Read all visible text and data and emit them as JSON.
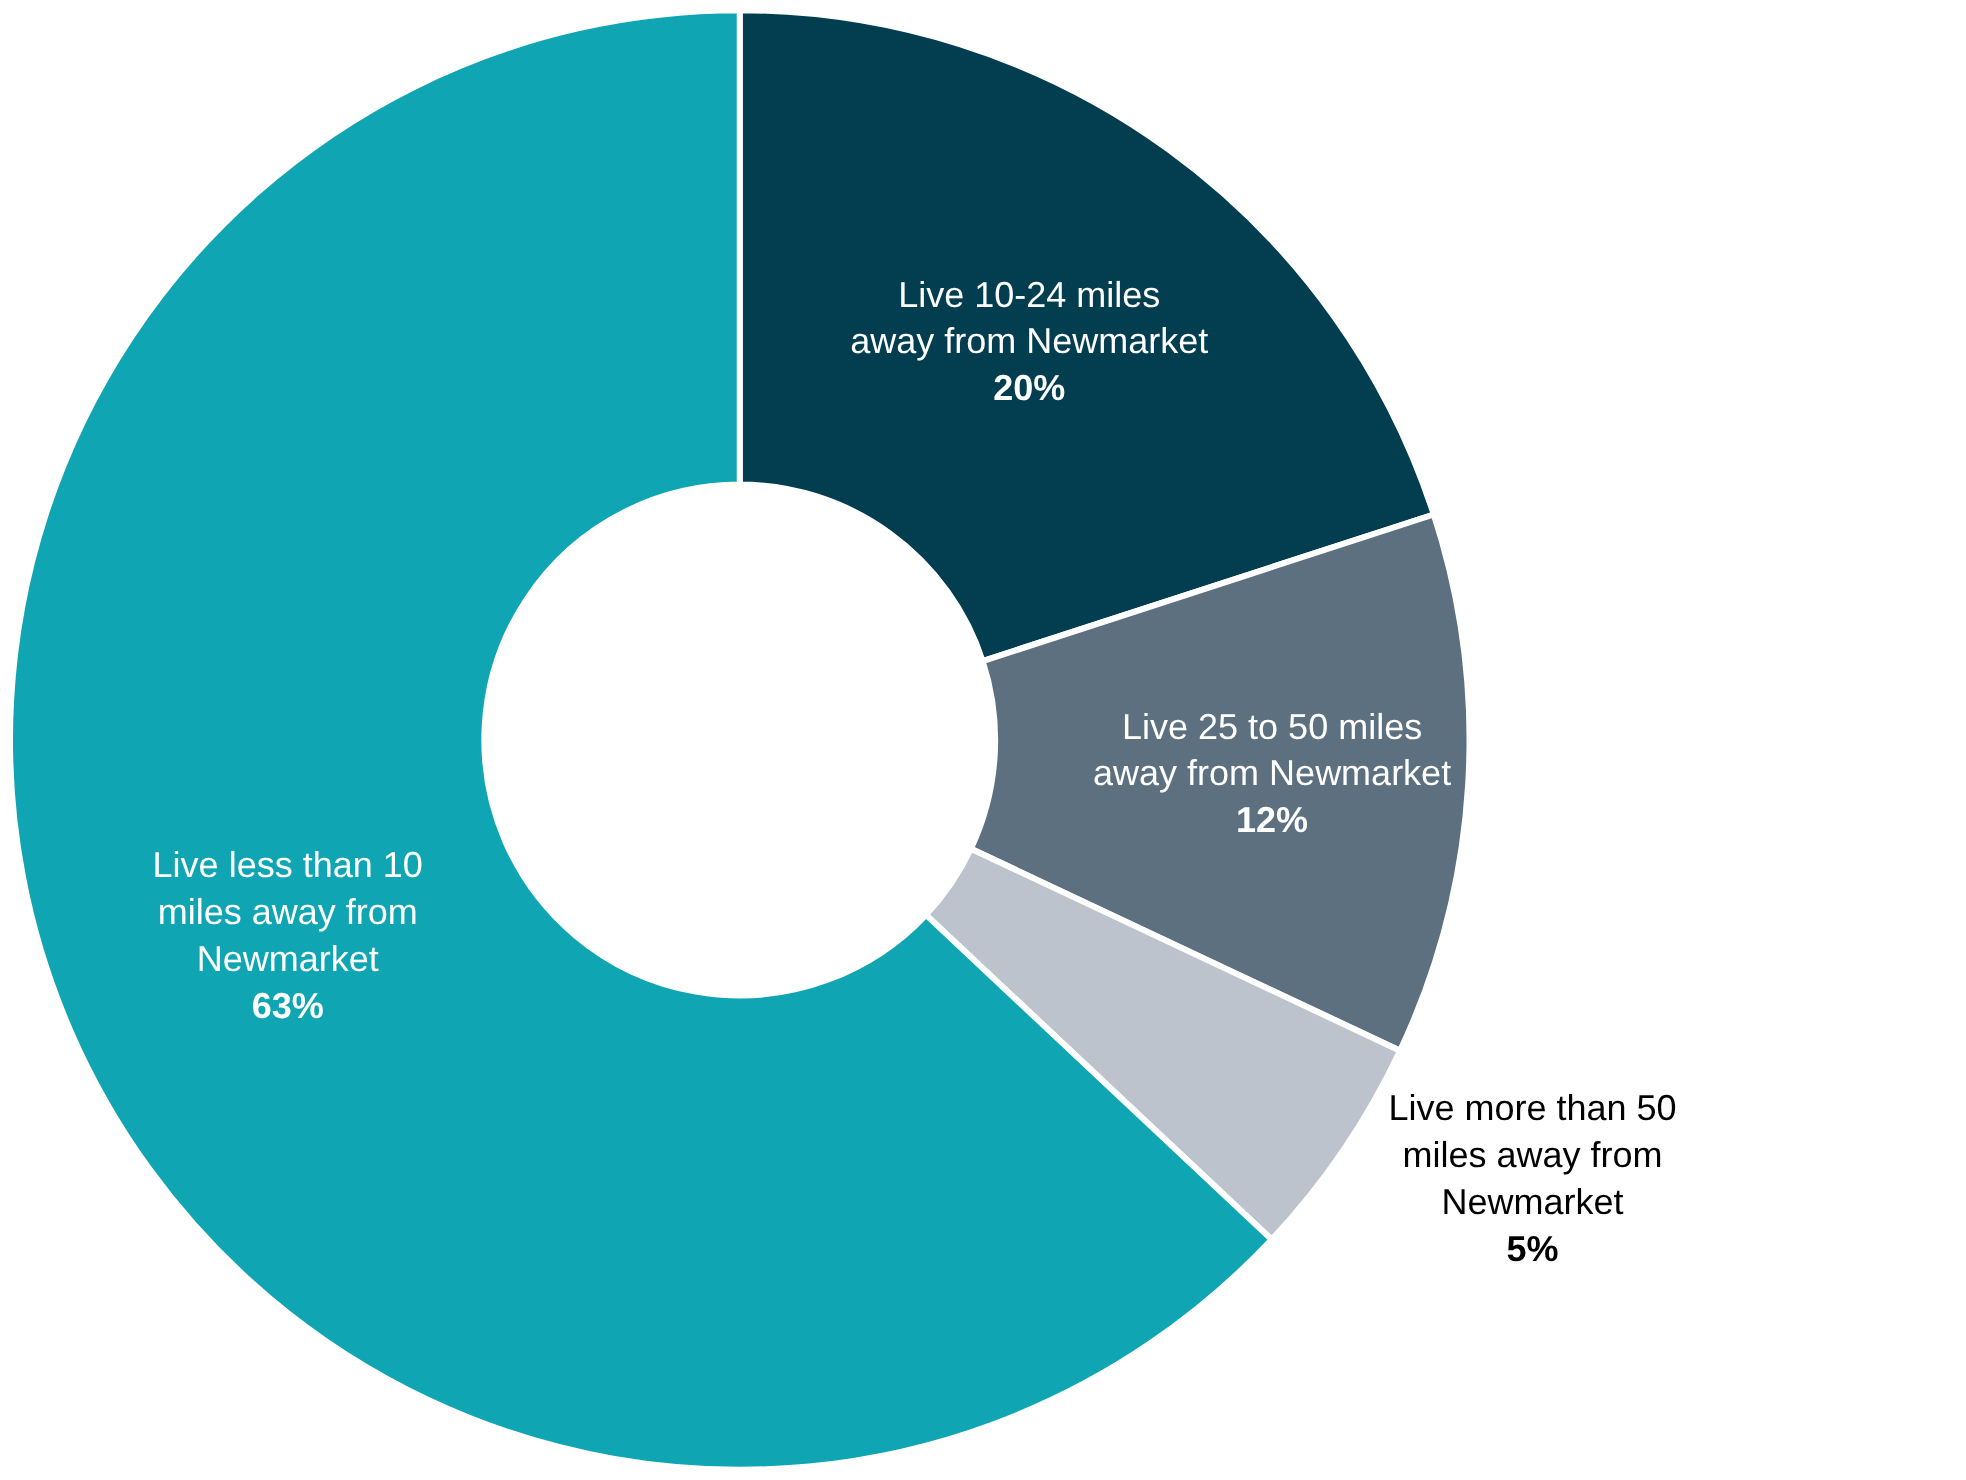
{
  "chart_data": {
    "type": "donut",
    "categories": [
      "Live 10-24 miles away from Newmarket",
      "Live 25 to 50 miles away from Newmarket",
      "Live more than 50 miles away from Newmarket",
      "Live less than 10 miles away from Newmarket"
    ],
    "values": [
      20,
      12,
      5,
      63
    ],
    "value_labels": [
      "20%",
      "12%",
      "5%",
      "63%"
    ],
    "colors": [
      "#023e50",
      "#5c7080",
      "#bcc3cc",
      "#10a5b3"
    ],
    "legend": false
  }
}
